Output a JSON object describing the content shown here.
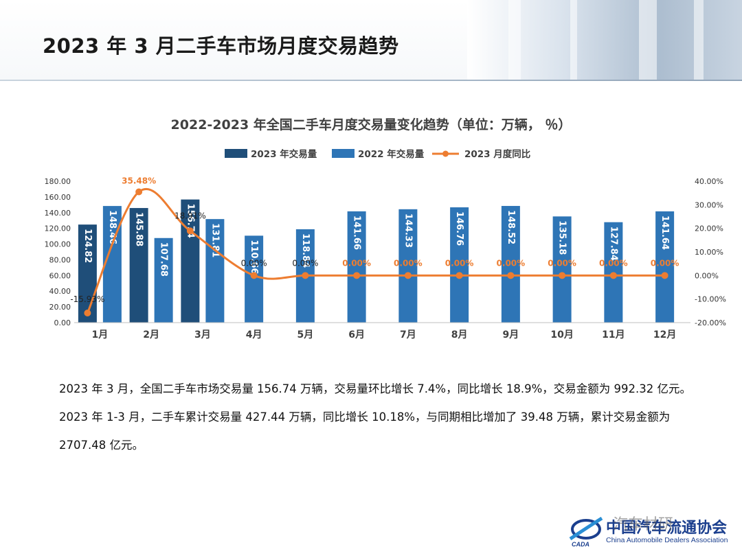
{
  "header": {
    "title": "2023 年 3 月二手车市场月度交易趋势"
  },
  "chart_data": {
    "type": "bar+line",
    "title": "2022-2023 年全国二手车月度交易量变化趋势（单位：万辆， ％）",
    "categories": [
      "1月",
      "2月",
      "3月",
      "4月",
      "5月",
      "6月",
      "7月",
      "8月",
      "9月",
      "10月",
      "11月",
      "12月"
    ],
    "series": [
      {
        "name": "2023 年交易量",
        "type": "bar",
        "color": "#1f4e79",
        "values": [
          124.82,
          145.88,
          156.74,
          null,
          null,
          null,
          null,
          null,
          null,
          null,
          null,
          null
        ],
        "labels": [
          "124.82",
          "145.88",
          "156.74",
          "",
          "",
          "",
          "",
          "",
          "",
          "",
          "",
          ""
        ]
      },
      {
        "name": "2022 年交易量",
        "type": "bar",
        "color": "#2e75b6",
        "values": [
          148.46,
          107.68,
          131.81,
          110.66,
          118.84,
          141.66,
          144.33,
          146.76,
          148.52,
          135.18,
          127.84,
          141.64
        ],
        "labels": [
          "148.46",
          "107.68",
          "131.81",
          "110.66",
          "118.84",
          "141.66",
          "144.33",
          "146.76",
          "148.52",
          "135.18",
          "127.84",
          "141.64"
        ]
      },
      {
        "name": "2023 月度同比",
        "type": "line",
        "axis": "right",
        "color": "#ed7d31",
        "values": [
          -15.93,
          35.48,
          18.91,
          0,
          0,
          0,
          0,
          0,
          0,
          0,
          0,
          0
        ],
        "labels": [
          "-15.93%",
          "35.48%",
          "18.91%",
          "0.00%",
          "0.00%",
          "0.00%",
          "0.00%",
          "0.00%",
          "0.00%",
          "0.00%",
          "0.00%",
          "0.00%"
        ]
      }
    ],
    "y_left": {
      "ticks": [
        "0.00",
        "20.00",
        "40.00",
        "60.00",
        "80.00",
        "100.00",
        "120.00",
        "140.00",
        "160.00",
        "180.00"
      ],
      "range": [
        0,
        180
      ]
    },
    "y_right": {
      "ticks": [
        "-20.00%",
        "-10.00%",
        "0.00%",
        "10.00%",
        "20.00%",
        "30.00%",
        "40.00%"
      ],
      "range": [
        -20,
        40
      ]
    },
    "legend_position": "top",
    "grid": false
  },
  "paragraphs": [
    "2023 年 3 月，全国二手车市场交易量 156.74 万辆，交易量环比增长 7.4%，同比增长 18.9%，交易金额为 992.32 亿元。",
    "2023 年 1-3 月，二手车累计交易量 427.44 万辆，同比增长 10.18%，与同期相比增加了 39.48 万辆，累计交易金额为 2707.48 亿元。"
  ],
  "footer": {
    "org_cn": "中国汽车流通协会",
    "org_en": "China Automobile Dealers Association",
    "logo_text": "CADA",
    "watermark": "汽车材研"
  }
}
